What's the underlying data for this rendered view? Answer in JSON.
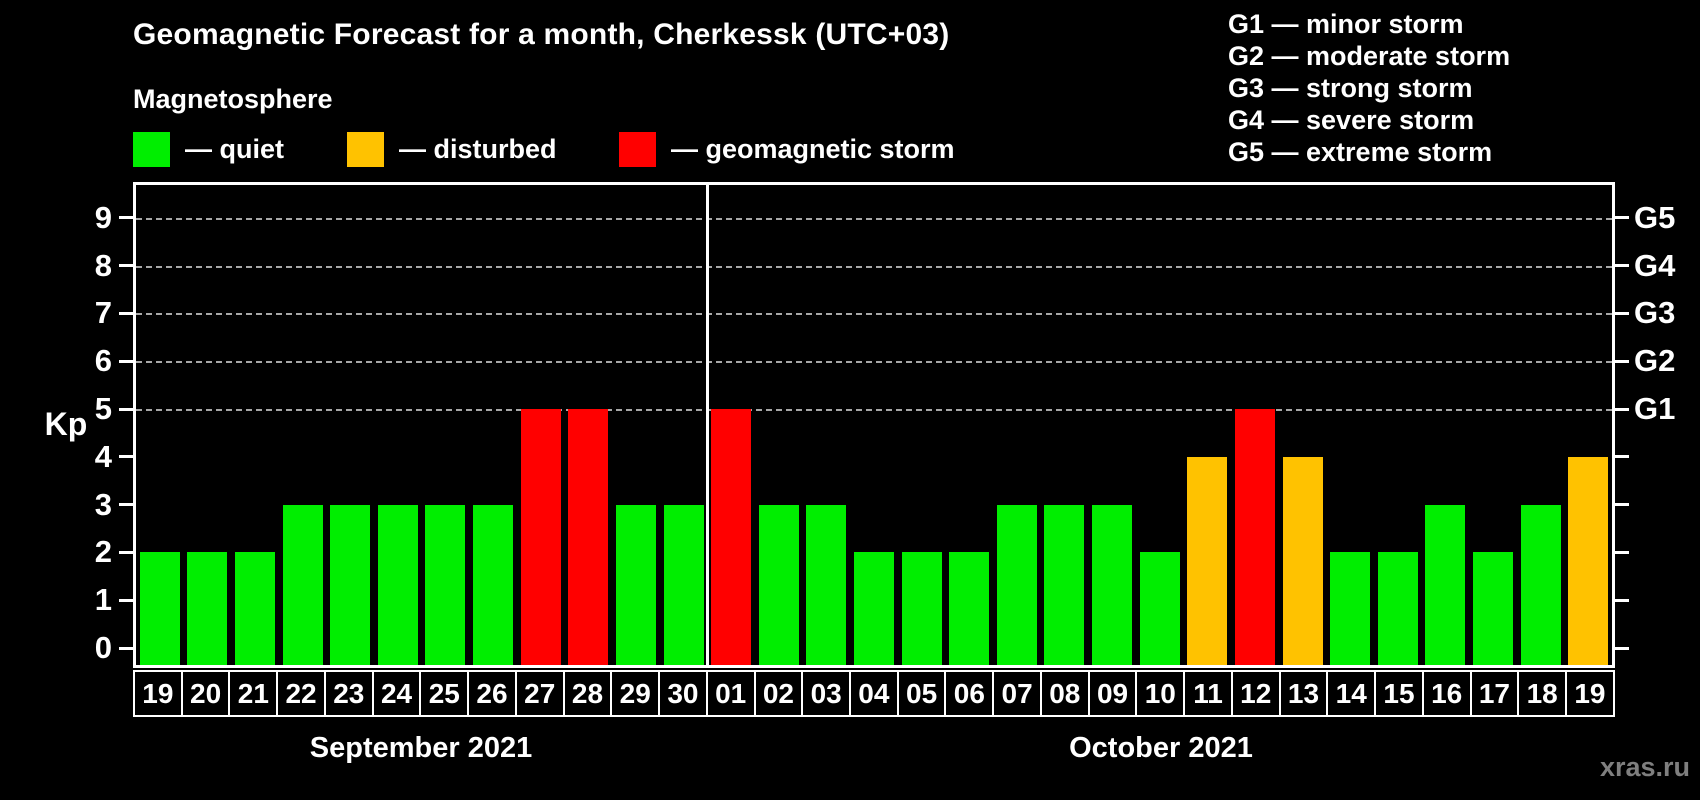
{
  "header": {
    "title": "Geomagnetic Forecast for a month, Cherkessk (UTC+03)",
    "subtitle": "Magnetosphere"
  },
  "legend": {
    "items": [
      {
        "status": "quiet",
        "label": "— quiet",
        "color": "#00ee00"
      },
      {
        "status": "disturbed",
        "label": "— disturbed",
        "color": "#ffc200"
      },
      {
        "status": "storm",
        "label": "— geomagnetic storm",
        "color": "#ff0000"
      }
    ]
  },
  "g_scale_legend": {
    "items": [
      "G1 — minor storm",
      "G2 — moderate storm",
      "G3 — strong storm",
      "G4 — severe storm",
      "G5 — extreme storm"
    ]
  },
  "watermark": "xras.ru",
  "chart_data": {
    "type": "bar",
    "title": "Geomagnetic Forecast for a month, Cherkessk (UTC+03)",
    "ylabel": "Kp",
    "ylim": [
      0,
      9
    ],
    "yticks": [
      0,
      1,
      2,
      3,
      4,
      5,
      6,
      7,
      8,
      9
    ],
    "gridlines_at_kp": [
      5,
      6,
      7,
      8,
      9
    ],
    "grid": "dashed, horizontal, only at Kp 5-9",
    "right_axis": [
      {
        "kp": 5,
        "label": "G1"
      },
      {
        "kp": 6,
        "label": "G2"
      },
      {
        "kp": 7,
        "label": "G3"
      },
      {
        "kp": 8,
        "label": "G4"
      },
      {
        "kp": 9,
        "label": "G5"
      }
    ],
    "status_colors": {
      "quiet": "#00ee00",
      "disturbed": "#ffc200",
      "storm": "#ff0000"
    },
    "months": [
      {
        "label": "September 2021",
        "days": [
          "19",
          "20",
          "21",
          "22",
          "23",
          "24",
          "25",
          "26",
          "27",
          "28",
          "29",
          "30"
        ]
      },
      {
        "label": "October 2021",
        "days": [
          "01",
          "02",
          "03",
          "04",
          "05",
          "06",
          "07",
          "08",
          "09",
          "10",
          "11",
          "12",
          "13",
          "14",
          "15",
          "16",
          "17",
          "18",
          "19"
        ]
      }
    ],
    "bars": [
      {
        "month": "September 2021",
        "day": "19",
        "kp": 2,
        "status": "quiet"
      },
      {
        "month": "September 2021",
        "day": "20",
        "kp": 2,
        "status": "quiet"
      },
      {
        "month": "September 2021",
        "day": "21",
        "kp": 2,
        "status": "quiet"
      },
      {
        "month": "September 2021",
        "day": "22",
        "kp": 3,
        "status": "quiet"
      },
      {
        "month": "September 2021",
        "day": "23",
        "kp": 3,
        "status": "quiet"
      },
      {
        "month": "September 2021",
        "day": "24",
        "kp": 3,
        "status": "quiet"
      },
      {
        "month": "September 2021",
        "day": "25",
        "kp": 3,
        "status": "quiet"
      },
      {
        "month": "September 2021",
        "day": "26",
        "kp": 3,
        "status": "quiet"
      },
      {
        "month": "September 2021",
        "day": "27",
        "kp": 5,
        "status": "storm"
      },
      {
        "month": "September 2021",
        "day": "28",
        "kp": 5,
        "status": "storm"
      },
      {
        "month": "September 2021",
        "day": "29",
        "kp": 3,
        "status": "quiet"
      },
      {
        "month": "September 2021",
        "day": "30",
        "kp": 3,
        "status": "quiet"
      },
      {
        "month": "October 2021",
        "day": "01",
        "kp": 5,
        "status": "storm"
      },
      {
        "month": "October 2021",
        "day": "02",
        "kp": 3,
        "status": "quiet"
      },
      {
        "month": "October 2021",
        "day": "03",
        "kp": 3,
        "status": "quiet"
      },
      {
        "month": "October 2021",
        "day": "04",
        "kp": 2,
        "status": "quiet"
      },
      {
        "month": "October 2021",
        "day": "05",
        "kp": 2,
        "status": "quiet"
      },
      {
        "month": "October 2021",
        "day": "06",
        "kp": 2,
        "status": "quiet"
      },
      {
        "month": "October 2021",
        "day": "07",
        "kp": 3,
        "status": "quiet"
      },
      {
        "month": "October 2021",
        "day": "08",
        "kp": 3,
        "status": "quiet"
      },
      {
        "month": "October 2021",
        "day": "09",
        "kp": 3,
        "status": "quiet"
      },
      {
        "month": "October 2021",
        "day": "10",
        "kp": 2,
        "status": "quiet"
      },
      {
        "month": "October 2021",
        "day": "11",
        "kp": 4,
        "status": "disturbed"
      },
      {
        "month": "October 2021",
        "day": "12",
        "kp": 5,
        "status": "storm"
      },
      {
        "month": "October 2021",
        "day": "13",
        "kp": 4,
        "status": "disturbed"
      },
      {
        "month": "October 2021",
        "day": "14",
        "kp": 2,
        "status": "quiet"
      },
      {
        "month": "October 2021",
        "day": "15",
        "kp": 2,
        "status": "quiet"
      },
      {
        "month": "October 2021",
        "day": "16",
        "kp": 3,
        "status": "quiet"
      },
      {
        "month": "October 2021",
        "day": "17",
        "kp": 2,
        "status": "quiet"
      },
      {
        "month": "October 2021",
        "day": "18",
        "kp": 3,
        "status": "quiet"
      },
      {
        "month": "October 2021",
        "day": "19",
        "kp": 4,
        "status": "disturbed"
      }
    ]
  }
}
